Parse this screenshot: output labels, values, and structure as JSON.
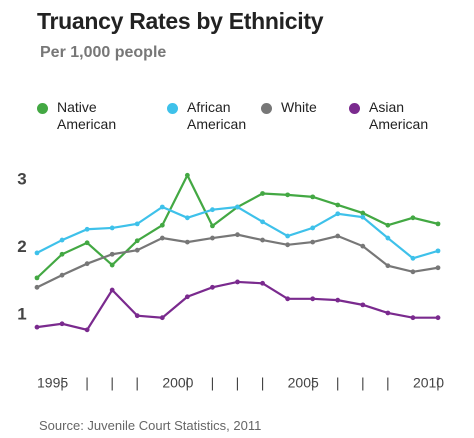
{
  "chart_data": {
    "type": "line",
    "title": "Truancy Rates by Ethnicity",
    "subtitle": "Per 1,000 people",
    "source": "Source: Juvenile Court Statistics, 2011",
    "x": [
      1995,
      1996,
      1997,
      1998,
      1999,
      2000,
      2001,
      2002,
      2003,
      2004,
      2005,
      2006,
      2007,
      2008,
      2009,
      2010,
      2011
    ],
    "series": [
      {
        "name": "Native American",
        "color": "#43a843",
        "values": [
          1.55,
          1.9,
          2.07,
          1.74,
          2.1,
          2.33,
          3.07,
          2.32,
          2.6,
          2.8,
          2.78,
          2.75,
          2.63,
          2.51,
          2.33,
          2.44,
          2.35
        ]
      },
      {
        "name": "African American",
        "color": "#3ec1ea",
        "values": [
          1.92,
          2.11,
          2.27,
          2.29,
          2.35,
          2.6,
          2.44,
          2.56,
          2.6,
          2.38,
          2.17,
          2.29,
          2.5,
          2.45,
          2.14,
          1.84,
          1.95
        ]
      },
      {
        "name": "White",
        "color": "#777777",
        "values": [
          1.41,
          1.59,
          1.76,
          1.9,
          1.96,
          2.14,
          2.08,
          2.14,
          2.19,
          2.11,
          2.04,
          2.08,
          2.17,
          2.02,
          1.73,
          1.64,
          1.7
        ]
      },
      {
        "name": "Asian American",
        "color": "#7a2a8e",
        "values": [
          0.82,
          0.87,
          0.78,
          1.37,
          0.99,
          0.96,
          1.27,
          1.41,
          1.49,
          1.47,
          1.24,
          1.24,
          1.22,
          1.15,
          1.03,
          0.96,
          0.96
        ]
      }
    ],
    "xlim": [
      1995,
      2011
    ],
    "xticks": [
      1995,
      {
        "value": 1996,
        "label": "|"
      },
      {
        "value": 1997,
        "label": "|"
      },
      {
        "value": 1998,
        "label": "|"
      },
      {
        "value": 1999,
        "label": "|"
      },
      2000,
      {
        "value": 2001,
        "label": "|"
      },
      {
        "value": 2002,
        "label": "|"
      },
      {
        "value": 2003,
        "label": "|"
      },
      {
        "value": 2004,
        "label": "|"
      },
      2005,
      {
        "value": 2006,
        "label": "|"
      },
      {
        "value": 2007,
        "label": "|"
      },
      {
        "value": 2008,
        "label": "|"
      },
      {
        "value": 2009,
        "label": "|"
      },
      2010,
      {
        "value": 2011,
        "label": "|"
      }
    ],
    "ylim": [
      0.5,
      3.3
    ],
    "yticks": [
      1,
      2,
      3
    ],
    "grid": false,
    "legend": "top"
  }
}
